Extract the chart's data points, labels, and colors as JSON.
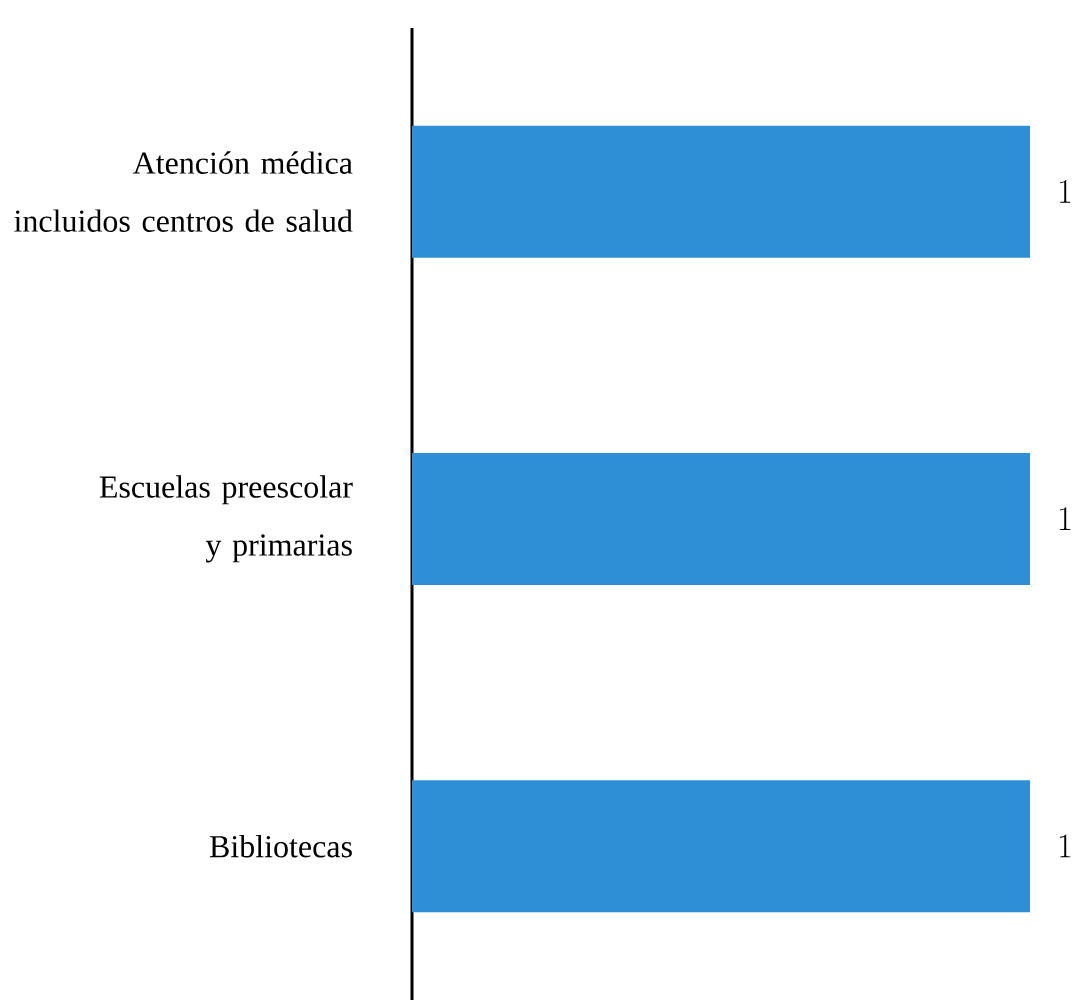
{
  "chart_data": {
    "type": "bar",
    "orientation": "horizontal",
    "categories": [
      "Atención médica incluidos centros de salud",
      "Escuelas preescolar y primarias",
      "Bibliotecas"
    ],
    "values": [
      1,
      1,
      1
    ],
    "color": "#2e8fd6",
    "data_labels": true
  }
}
